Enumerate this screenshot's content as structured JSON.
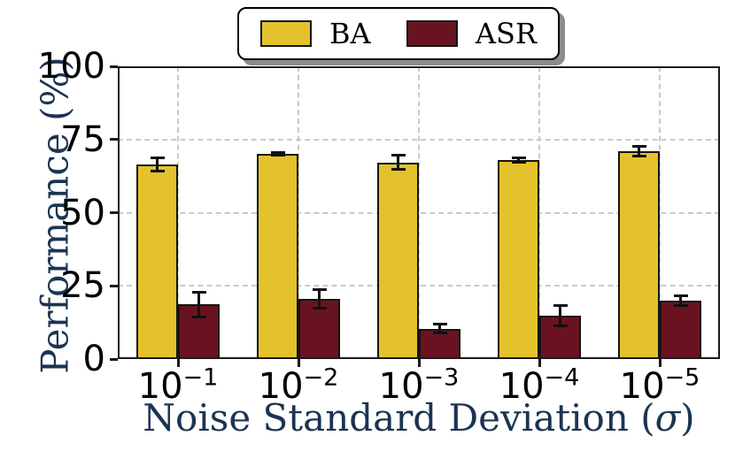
{
  "chart_data": {
    "type": "bar",
    "title": "",
    "xlabel_parts": {
      "prefix": "Noise Standard Deviation (",
      "sigma": "σ",
      "suffix": ")"
    },
    "ylabel": "Performance (%)",
    "categories": [
      {
        "base": "10",
        "exp": "−1"
      },
      {
        "base": "10",
        "exp": "−2"
      },
      {
        "base": "10",
        "exp": "−3"
      },
      {
        "base": "10",
        "exp": "−4"
      },
      {
        "base": "10",
        "exp": "−5"
      }
    ],
    "series": [
      {
        "name": "BA",
        "color": "#E4C22B",
        "values": [
          66.5,
          70.0,
          67.2,
          68.0,
          71.0
        ],
        "errors": [
          2.2,
          0.5,
          2.4,
          0.8,
          1.6
        ]
      },
      {
        "name": "ASR",
        "color": "#691320",
        "values": [
          18.6,
          20.5,
          10.4,
          14.8,
          20.0
        ],
        "errors": [
          4.2,
          3.2,
          1.6,
          3.5,
          1.7
        ]
      }
    ],
    "ylim": [
      0,
      100
    ],
    "yticks": [
      0,
      25,
      50,
      75,
      100
    ],
    "grid": "dashed-both-axes",
    "legend_position": "top-center"
  },
  "legend": {
    "items": [
      {
        "label": "BA",
        "color": "#E4C22B"
      },
      {
        "label": "ASR",
        "color": "#691320"
      }
    ]
  },
  "axes": {
    "ylabel": "Performance (%)",
    "xlabel_prefix": "Noise Standard Deviation (",
    "xlabel_sigma": "σ",
    "xlabel_suffix": ")"
  },
  "colors": {
    "axis_title": "#1C3452",
    "grid": "#c9c9c9",
    "spine": "#1a1a1a",
    "legend_shadow": "#8c8c8c"
  }
}
